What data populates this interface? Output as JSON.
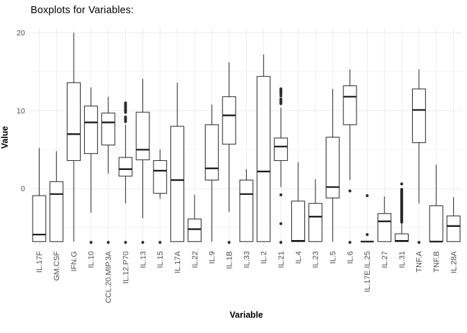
{
  "title": "Boxplots for Variables:",
  "colors": {
    "background": "#FFFFFF",
    "grid_major": "#EBEBEB",
    "grid_minor": "#F3F3F3",
    "box_stroke": "#333333",
    "median_stroke": "#1A1A1A",
    "outlier_fill": "#2B2B2B",
    "tick_text": "#4D4D4D",
    "title_text": "#000000"
  },
  "chart_data": {
    "type": "boxplot",
    "title": "Boxplots for Variables:",
    "xlabel": "Variable",
    "ylabel": "Value",
    "ylim": [
      -7.4,
      20.65
    ],
    "yticks": [
      0,
      10,
      20
    ],
    "yticks_minor": [
      -5,
      5,
      15
    ],
    "grid": "on",
    "legend": "none",
    "boxes": [
      {
        "label": "IL.17F",
        "whisker_low": -6.8,
        "q1": -6.8,
        "median": -5.9,
        "q3": -0.9,
        "whisker_high": 5.2,
        "outliers": []
      },
      {
        "label": "GM.CSF",
        "whisker_low": -6.8,
        "q1": -6.8,
        "median": -0.7,
        "q3": 0.9,
        "whisker_high": 4.8,
        "outliers": []
      },
      {
        "label": "IFN.G",
        "whisker_low": -6.8,
        "q1": 3.6,
        "median": 7.0,
        "q3": 13.6,
        "whisker_high": 20.0,
        "outliers": []
      },
      {
        "label": "IL.10",
        "whisker_low": -3.1,
        "q1": 4.5,
        "median": 8.5,
        "q3": 10.6,
        "whisker_high": 13.0,
        "outliers": [
          -6.9
        ]
      },
      {
        "label": "CCL.20.MIP.3A",
        "whisker_low": 1.9,
        "q1": 5.6,
        "median": 8.5,
        "q3": 9.7,
        "whisker_high": 11.8,
        "outliers": [
          -6.9
        ]
      },
      {
        "label": "IL.12.P70",
        "whisker_low": -1.9,
        "q1": 1.6,
        "median": 2.5,
        "q3": 4.0,
        "whisker_high": 8.2,
        "outliers": [
          11.0,
          10.8,
          10.6,
          10.4,
          10.2,
          10.0,
          9.8,
          9.2,
          9.0,
          8.8,
          8.6,
          -6.9
        ]
      },
      {
        "label": "IL.13",
        "whisker_low": -3.8,
        "q1": 3.7,
        "median": 5.0,
        "q3": 9.8,
        "whisker_high": 14.1,
        "outliers": [
          -6.9
        ]
      },
      {
        "label": "IL.15",
        "whisker_low": -1.3,
        "q1": -0.6,
        "median": 2.3,
        "q3": 3.6,
        "whisker_high": 5.0,
        "outliers": [
          -6.9
        ]
      },
      {
        "label": "IL.17A",
        "whisker_low": -6.8,
        "q1": -6.8,
        "median": 1.1,
        "q3": 8.0,
        "whisker_high": 13.6,
        "outliers": []
      },
      {
        "label": "IL.22",
        "whisker_low": -6.8,
        "q1": -6.8,
        "median": -5.2,
        "q3": -3.9,
        "whisker_high": -0.8,
        "outliers": []
      },
      {
        "label": "IL.9",
        "whisker_low": -6.8,
        "q1": 1.1,
        "median": 2.6,
        "q3": 8.2,
        "whisker_high": 10.8,
        "outliers": []
      },
      {
        "label": "IL.1B",
        "whisker_low": -3.0,
        "q1": 5.7,
        "median": 9.4,
        "q3": 11.8,
        "whisker_high": 16.2,
        "outliers": [
          -6.9
        ]
      },
      {
        "label": "IL.33",
        "whisker_low": -6.8,
        "q1": -6.8,
        "median": -0.7,
        "q3": 1.1,
        "whisker_high": 2.5,
        "outliers": []
      },
      {
        "label": "IL.2",
        "whisker_low": -6.8,
        "q1": -6.8,
        "median": 2.2,
        "q3": 14.4,
        "whisker_high": 17.2,
        "outliers": []
      },
      {
        "label": "IL.21",
        "whisker_low": 0.2,
        "q1": 3.6,
        "median": 5.4,
        "q3": 6.5,
        "whisker_high": 10.4,
        "outliers": [
          12.8,
          12.6,
          12.4,
          12.2,
          11.9,
          11.5,
          11.3,
          11.1,
          10.9,
          -0.8,
          -4.5,
          -6.9
        ]
      },
      {
        "label": "IL.4",
        "whisker_low": -6.8,
        "q1": -6.8,
        "median": -6.7,
        "q3": -1.6,
        "whisker_high": 3.4,
        "outliers": []
      },
      {
        "label": "IL.23",
        "whisker_low": -6.8,
        "q1": -6.8,
        "median": -3.6,
        "q3": -1.9,
        "whisker_high": 1.2,
        "outliers": []
      },
      {
        "label": "IL.5",
        "whisker_low": -6.8,
        "q1": -1.2,
        "median": 0.2,
        "q3": 6.6,
        "whisker_high": 12.8,
        "outliers": []
      },
      {
        "label": "IL.6",
        "whisker_low": 1.1,
        "q1": 8.2,
        "median": 11.8,
        "q3": 13.2,
        "whisker_high": 15.3,
        "outliers": [
          -0.3,
          -6.9
        ]
      },
      {
        "label": "IL.17E.IL.25",
        "whisker_low": -6.8,
        "q1": -6.8,
        "median": -6.8,
        "q3": -6.8,
        "whisker_high": -6.8,
        "outliers": [
          -0.9,
          -5.9
        ]
      },
      {
        "label": "IL.27",
        "whisker_low": -6.8,
        "q1": -6.8,
        "median": -4.2,
        "q3": -3.2,
        "whisker_high": -1.0,
        "outliers": []
      },
      {
        "label": "IL.31",
        "whisker_low": -6.8,
        "q1": -6.8,
        "median": -6.7,
        "q3": -5.8,
        "whisker_high": -4.4,
        "outliers": [
          0.6,
          -0.1,
          -0.25,
          -0.4,
          -0.55,
          -0.7,
          -0.85,
          -1.0,
          -1.15,
          -1.3,
          -1.45,
          -1.6,
          -1.75,
          -1.9,
          -2.05,
          -2.2,
          -2.35,
          -2.5,
          -2.65,
          -2.8,
          -2.95,
          -3.1,
          -3.25,
          -3.4,
          -3.55,
          -3.7,
          -3.85,
          -4.0,
          -4.15,
          -4.3
        ]
      },
      {
        "label": "TNF.A",
        "whisker_low": -1.9,
        "q1": 5.9,
        "median": 10.1,
        "q3": 12.8,
        "whisker_high": 15.3,
        "outliers": [
          -6.9
        ]
      },
      {
        "label": "TNF.B",
        "whisker_low": -6.8,
        "q1": -6.8,
        "median": -6.8,
        "q3": -2.2,
        "whisker_high": 3.1,
        "outliers": []
      },
      {
        "label": "IL.28A",
        "whisker_low": -6.8,
        "q1": -6.8,
        "median": -4.8,
        "q3": -3.5,
        "whisker_high": -1.1,
        "outliers": []
      }
    ]
  }
}
